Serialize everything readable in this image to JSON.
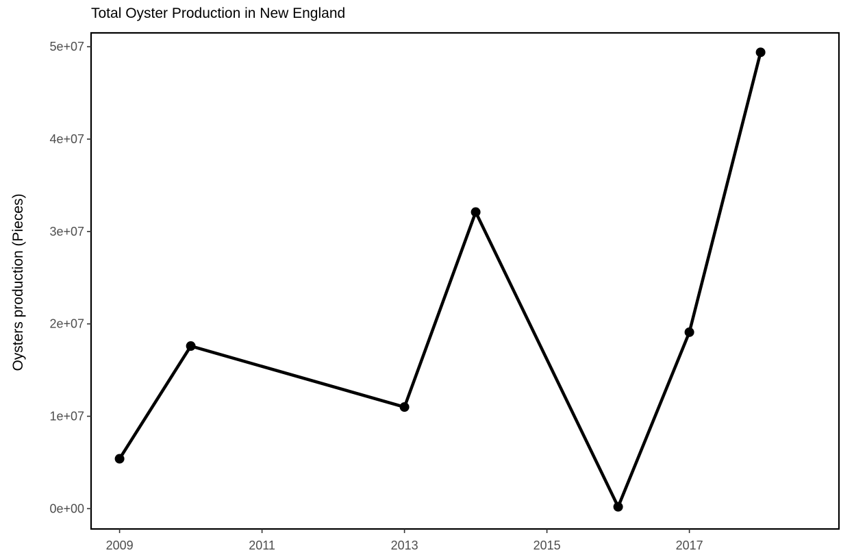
{
  "chart_data": {
    "type": "line",
    "title": "Total Oyster Production in New England",
    "xlabel": "",
    "ylabel": "Oysters production (Pieces)",
    "x": [
      2009,
      2010,
      2013,
      2014,
      2016,
      2017,
      2018
    ],
    "series": [
      {
        "values": [
          5400000,
          17600000,
          11000000,
          32100000,
          200000,
          19100000,
          49400000
        ]
      }
    ],
    "xlim": [
      2008.6,
      2019.1
    ],
    "ylim": [
      -2200000,
      51500000
    ],
    "x_ticks": [
      2009,
      2011,
      2013,
      2015,
      2017
    ],
    "x_tick_labels": [
      "2009",
      "2011",
      "2013",
      "2015",
      "2017"
    ],
    "y_ticks": [
      0,
      10000000,
      20000000,
      30000000,
      40000000,
      50000000
    ],
    "y_tick_labels": [
      "0e+00",
      "1e+07",
      "2e+07",
      "3e+07",
      "4e+07",
      "5e+07"
    ],
    "grid": false,
    "line_color": "#000000"
  }
}
